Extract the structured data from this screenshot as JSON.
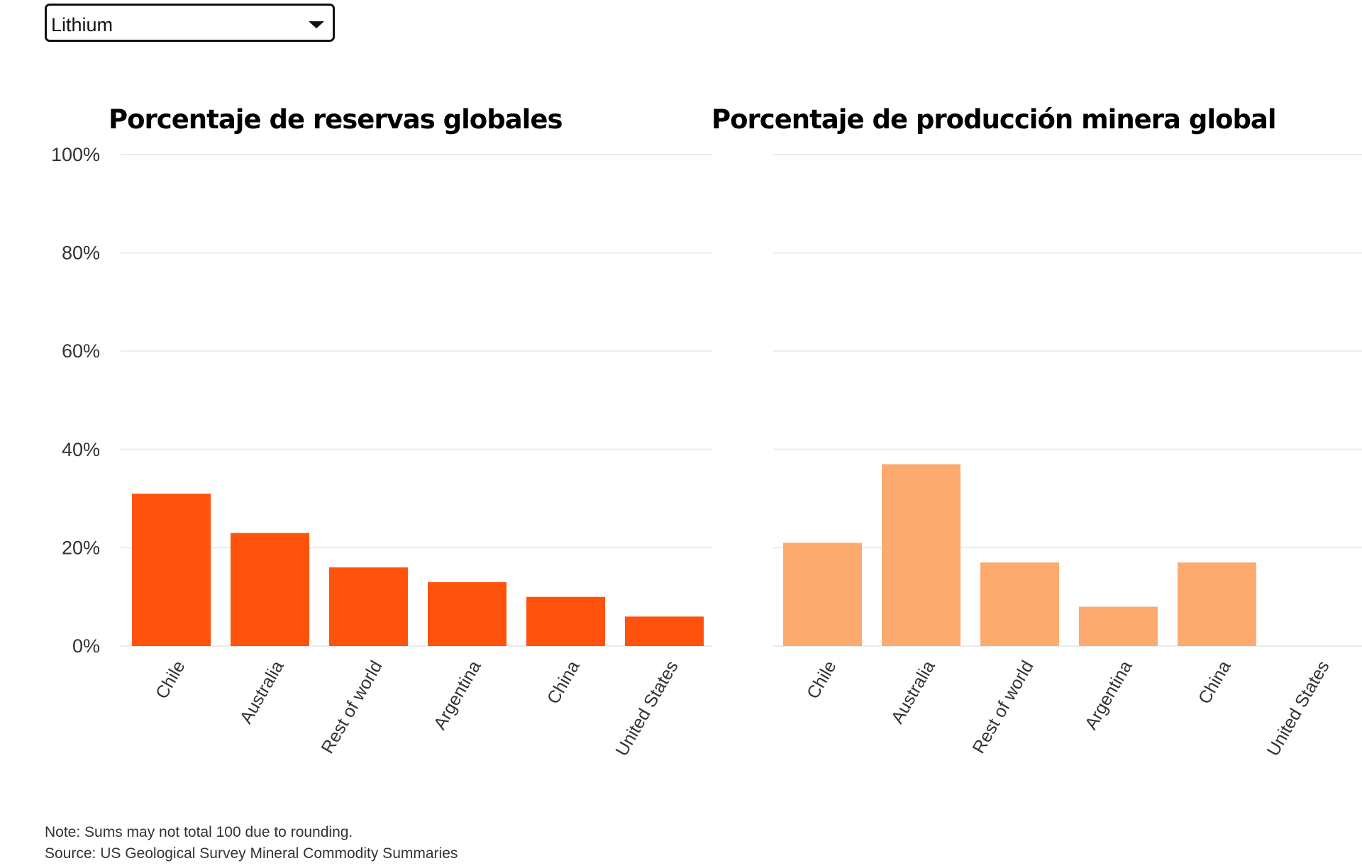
{
  "selector": {
    "value": "Lithium"
  },
  "chart_data": [
    {
      "type": "bar",
      "title": "Porcentaje de reservas globales",
      "categories": [
        "Chile",
        "Australia",
        "Rest of world",
        "Argentina",
        "China",
        "United States"
      ],
      "values": [
        31,
        23,
        16,
        13,
        10,
        6
      ],
      "ylim": [
        0,
        100
      ],
      "yticks": [
        "0%",
        "20%",
        "40%",
        "60%",
        "80%",
        "100%"
      ],
      "color": "#FF530D",
      "grid": true
    },
    {
      "type": "bar",
      "title": "Porcentaje de producción minera global",
      "categories": [
        "Chile",
        "Australia",
        "Rest of world",
        "Argentina",
        "China",
        "United States"
      ],
      "values": [
        21,
        37,
        17,
        8,
        17,
        0
      ],
      "ylim": [
        0,
        100
      ],
      "color": "#FDAA6E",
      "grid": true
    }
  ],
  "notes": {
    "note": "Note: Sums may not total 100 due to rounding.",
    "source": "Source: US Geological Survey Mineral Commodity Summaries"
  }
}
